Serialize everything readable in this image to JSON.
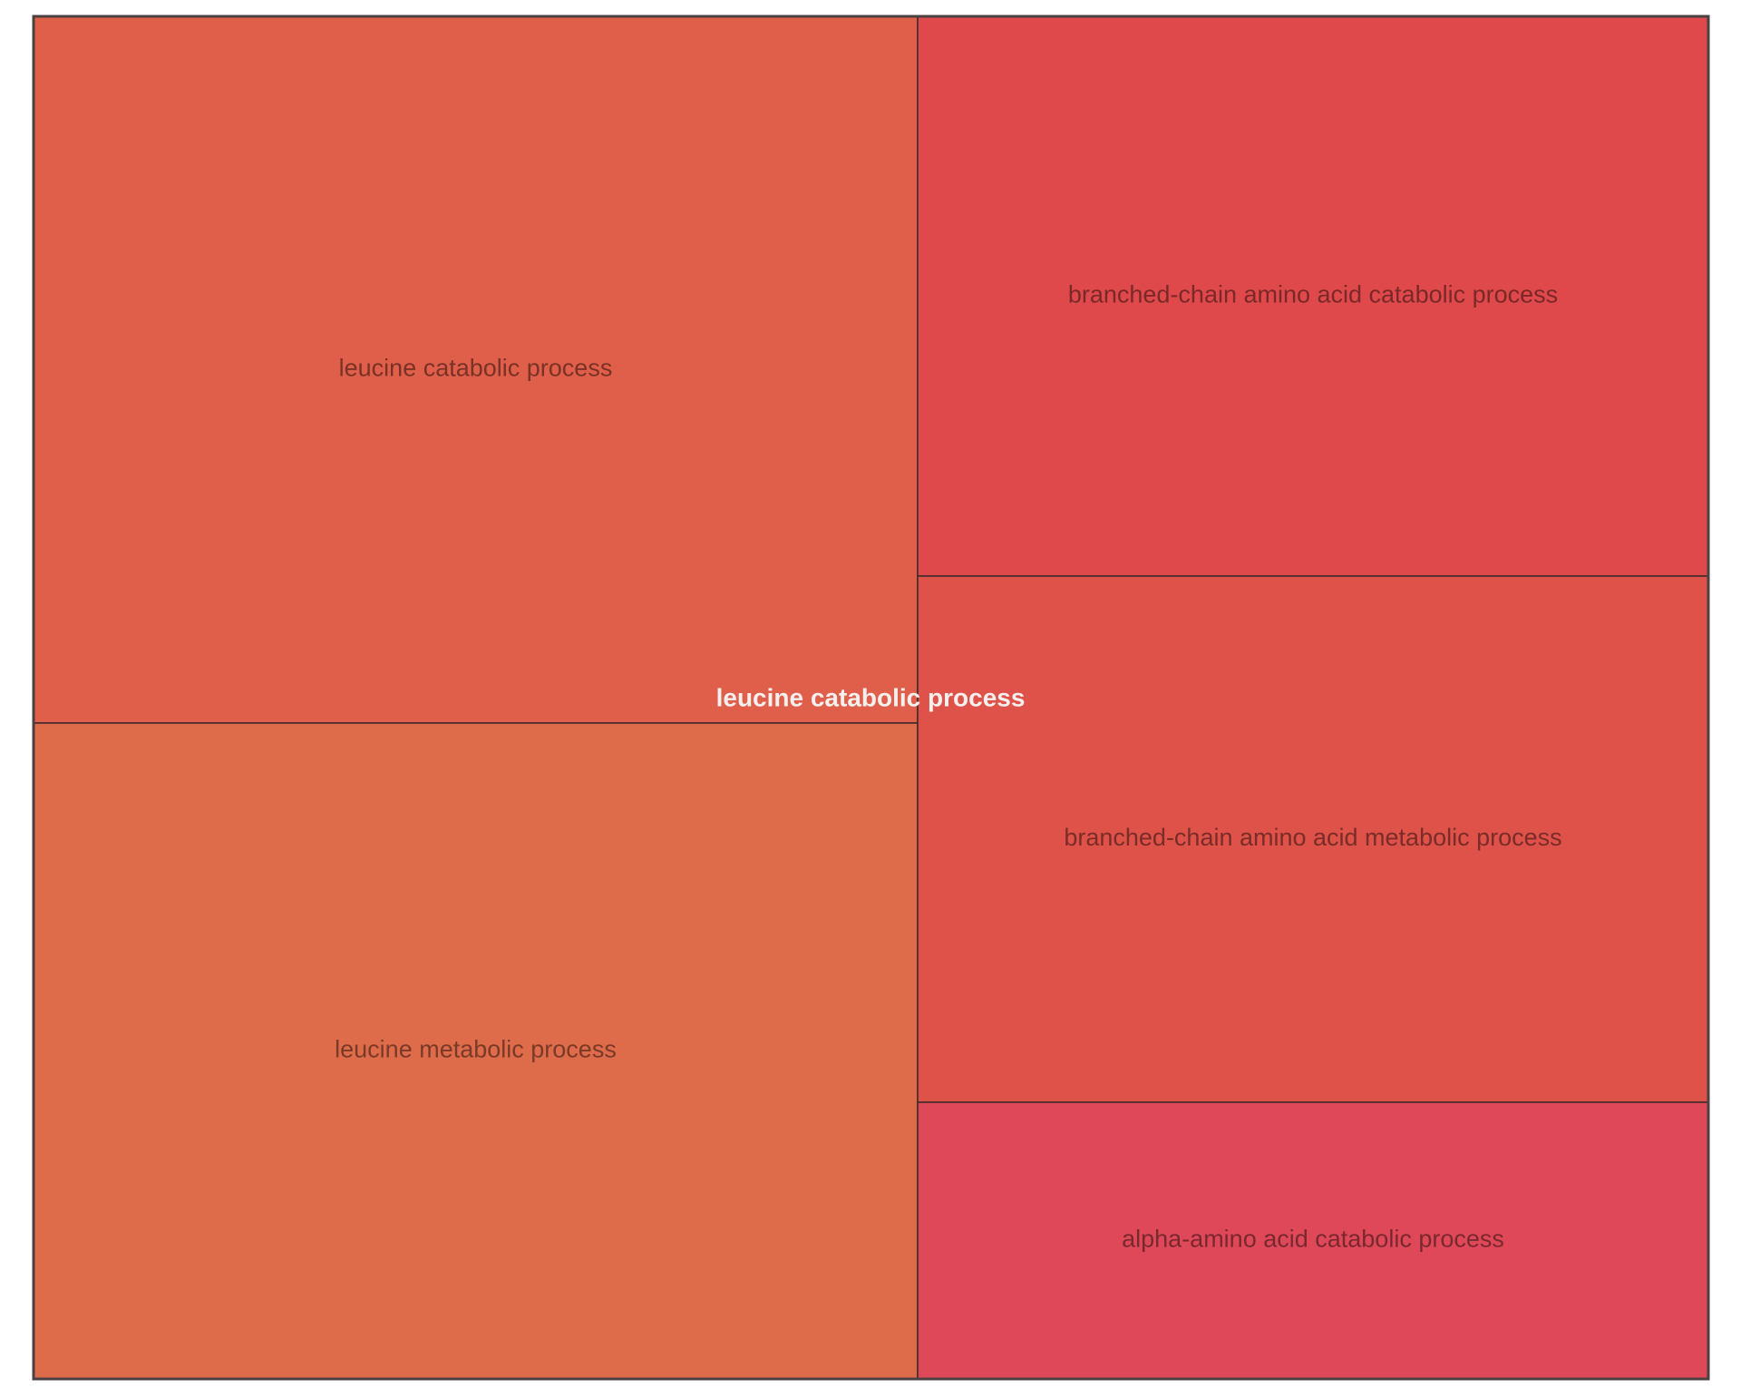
{
  "chart_data": {
    "type": "treemap",
    "group": {
      "label": "leucine catabolic process",
      "label_color": "#f5f0ee",
      "border_color": "#4a4242"
    },
    "tiles": [
      {
        "label": "leucine catabolic process",
        "color": "#e05f4a",
        "label_color": "#7a3226"
      },
      {
        "label": "leucine metabolic process",
        "color": "#de6b4a",
        "label_color": "#7a3a28"
      },
      {
        "label": "branched-chain amino acid catabolic process",
        "color": "#df494b",
        "label_color": "#7a2828"
      },
      {
        "label": "branched-chain amino acid metabolic process",
        "color": "#df5249",
        "label_color": "#7a2c28"
      },
      {
        "label": "alpha-amino acid catabolic process",
        "color": "#df4858",
        "label_color": "#7a2830"
      }
    ],
    "divider_color": "#3a2a2a"
  }
}
